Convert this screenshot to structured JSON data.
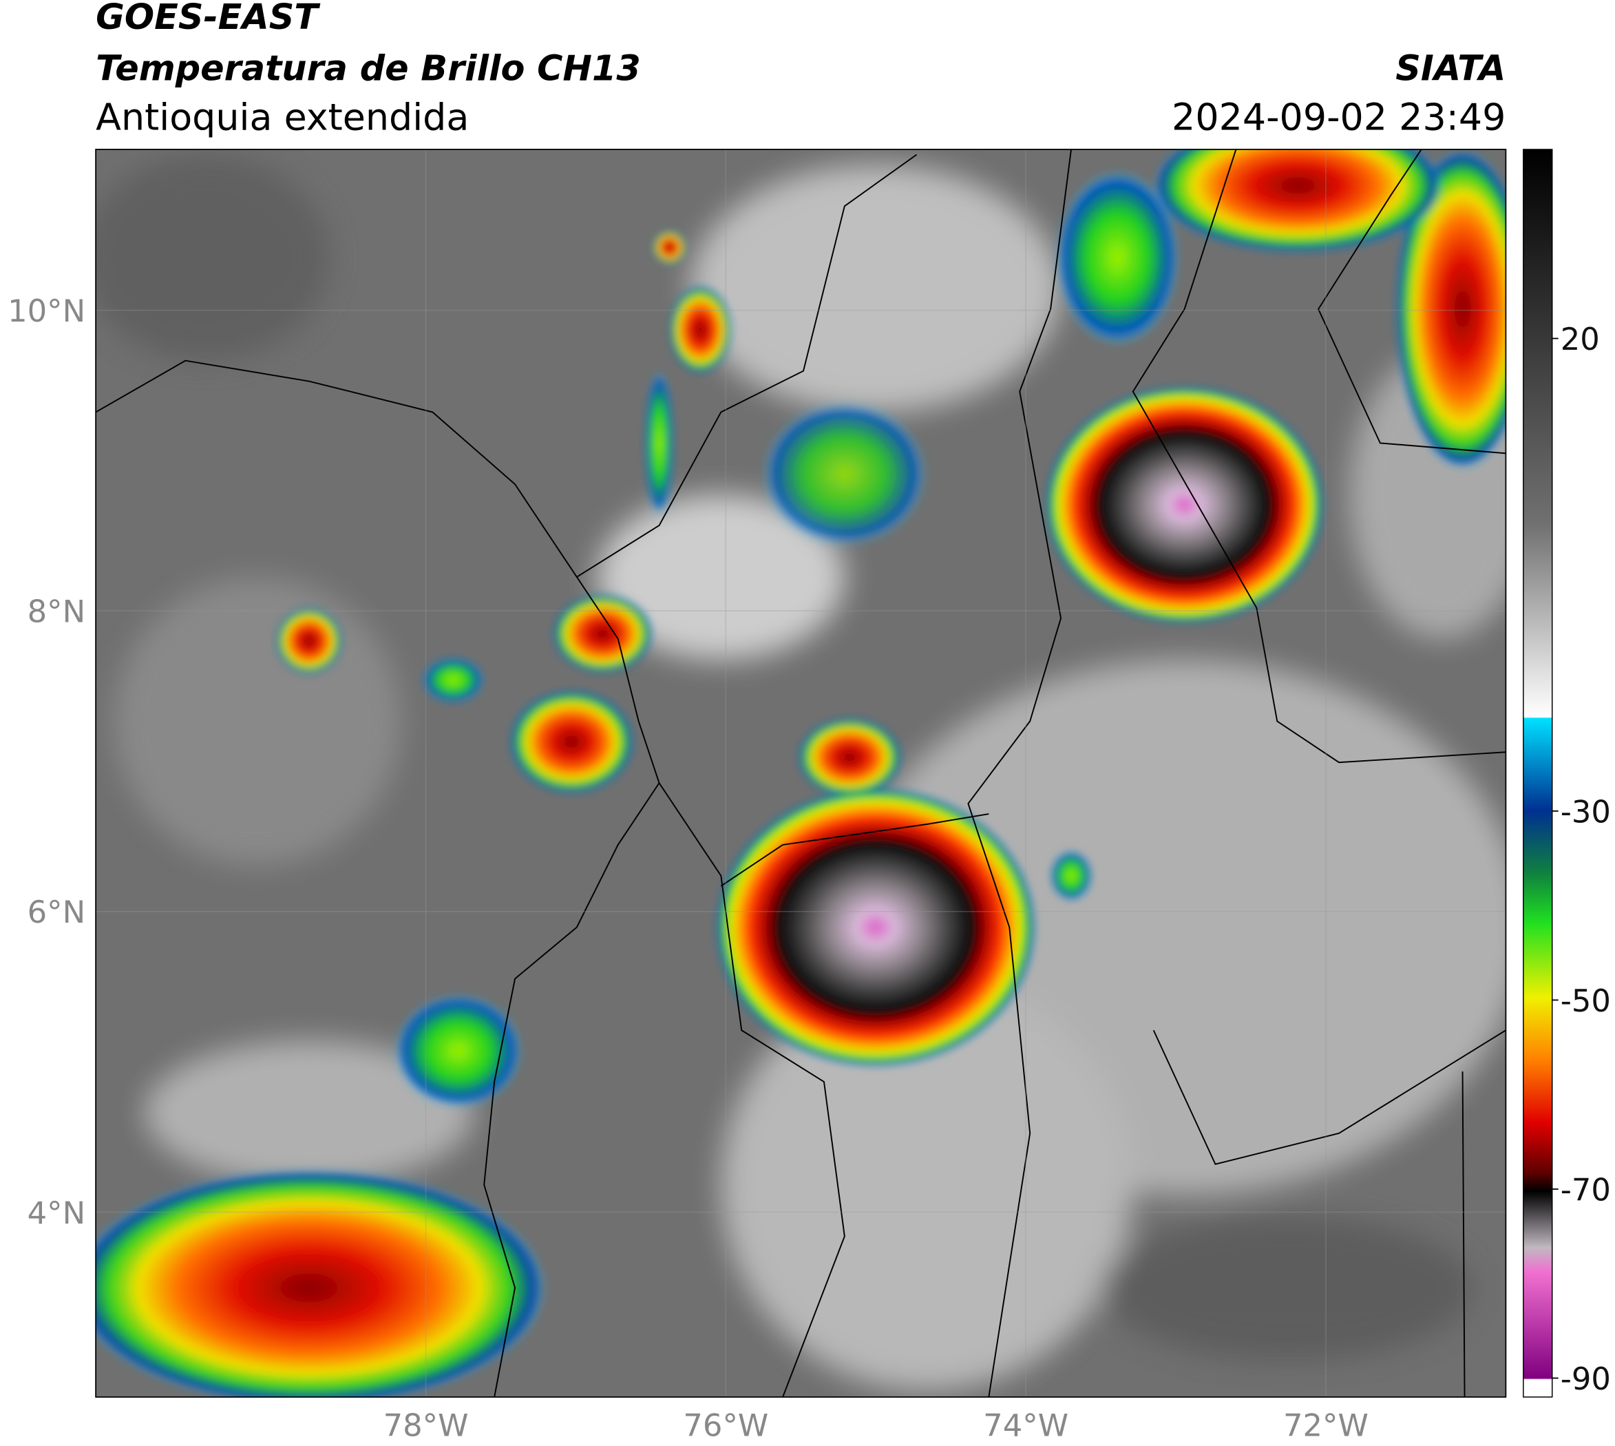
{
  "map": {
    "title": "GOES-EAST",
    "subtitle": "Temperatura de Brillo CH13",
    "region": "Antioquia extendida",
    "source": "SIATA",
    "datetime": "2024-09-02 23:49",
    "xlim": [
      -80.2,
      -70.8
    ],
    "ylim": [
      2.77,
      11.07
    ],
    "xticks": [
      {
        "value": -78,
        "label": "78°W"
      },
      {
        "value": -76,
        "label": "76°W"
      },
      {
        "value": -74,
        "label": "74°W"
      },
      {
        "value": -72,
        "label": "72°W"
      }
    ],
    "yticks": [
      {
        "value": 10,
        "label": "10°N"
      },
      {
        "value": 8,
        "label": "8°N"
      },
      {
        "value": 6,
        "label": "6°N"
      },
      {
        "value": 4,
        "label": "4°N"
      }
    ],
    "grid": true,
    "colorbar": {
      "lim": [
        -92,
        40
      ],
      "ticks": [
        20,
        -30,
        -50,
        -70,
        -90
      ]
    }
  }
}
